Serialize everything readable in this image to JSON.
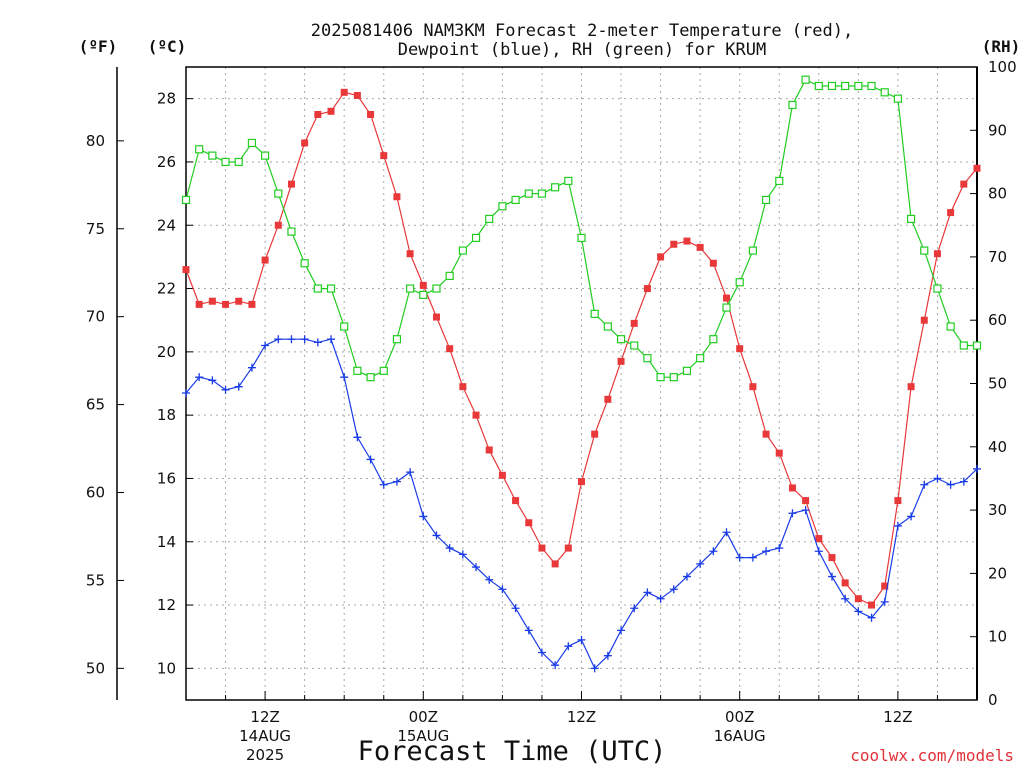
{
  "chart_data": {
    "type": "line",
    "title_line1": "2025081406 NAM3KM Forecast 2-meter Temperature (red),",
    "title_line2": "Dewpoint (blue), RH (green) for KRUM",
    "xlabel": "Forecast Time (UTC)",
    "credit": "coolwx.com/models",
    "units": {
      "fahrenheit": "(ºF)",
      "celsius": "(ºC)",
      "rh": "(RH)"
    },
    "x_range_hours": [
      6,
      66
    ],
    "x_ticks": [
      {
        "hour": 12,
        "l1": "12Z",
        "l2": "14AUG",
        "l3": "2025"
      },
      {
        "hour": 24,
        "l1": "00Z",
        "l2": "15AUG",
        "l3": ""
      },
      {
        "hour": 36,
        "l1": "12Z",
        "l2": "",
        "l3": ""
      },
      {
        "hour": 48,
        "l1": "00Z",
        "l2": "16AUG",
        "l3": ""
      },
      {
        "hour": 60,
        "l1": "12Z",
        "l2": "",
        "l3": ""
      }
    ],
    "y_celsius": {
      "range": [
        9,
        29
      ],
      "ticks": [
        10,
        12,
        14,
        16,
        18,
        20,
        22,
        24,
        26,
        28
      ]
    },
    "y_fahrenheit": {
      "ticks": [
        50,
        55,
        60,
        65,
        70,
        75,
        80
      ]
    },
    "y_rh": {
      "range": [
        0,
        100
      ],
      "ticks": [
        0,
        10,
        20,
        30,
        40,
        50,
        60,
        70,
        80,
        90,
        100
      ]
    },
    "grid": true,
    "series": [
      {
        "name": "Temperature",
        "color": "#e8383a",
        "axis": "celsius",
        "marker": "filled-square",
        "x": [
          6,
          7,
          8,
          9,
          10,
          11,
          12,
          13,
          14,
          15,
          16,
          17,
          18,
          19,
          20,
          21,
          22,
          23,
          24,
          25,
          26,
          27,
          28,
          29,
          30,
          31,
          32,
          33,
          34,
          35,
          36,
          37,
          38,
          39,
          40,
          41,
          42,
          43,
          44,
          45,
          46,
          47,
          48,
          49,
          50,
          51,
          52,
          53,
          54,
          55,
          56,
          57,
          58,
          59,
          60,
          61,
          62,
          63,
          64,
          65,
          66
        ],
        "values": [
          22.6,
          21.5,
          21.6,
          21.5,
          21.6,
          21.5,
          22.9,
          24.0,
          25.3,
          26.6,
          27.5,
          27.6,
          28.2,
          28.1,
          27.5,
          26.2,
          24.9,
          23.1,
          22.1,
          21.1,
          20.1,
          18.9,
          18.0,
          16.9,
          16.1,
          15.3,
          14.6,
          13.8,
          13.3,
          13.8,
          15.9,
          17.4,
          18.5,
          19.7,
          20.9,
          22.0,
          23.0,
          23.4,
          23.5,
          23.3,
          22.8,
          21.7,
          20.1,
          18.9,
          17.4,
          16.8,
          15.7,
          15.3,
          14.1,
          13.5,
          12.7,
          12.2,
          12.0,
          12.6,
          15.3,
          18.9,
          21.0,
          23.1,
          24.4,
          25.3,
          25.8
        ]
      },
      {
        "name": "Dewpoint",
        "color": "#1a3ce8",
        "axis": "celsius",
        "marker": "plus",
        "x": [
          6,
          7,
          8,
          9,
          10,
          11,
          12,
          13,
          14,
          15,
          16,
          17,
          18,
          19,
          20,
          21,
          22,
          23,
          24,
          25,
          26,
          27,
          28,
          29,
          30,
          31,
          32,
          33,
          34,
          35,
          36,
          37,
          38,
          39,
          40,
          41,
          42,
          43,
          44,
          45,
          46,
          47,
          48,
          49,
          50,
          51,
          52,
          53,
          54,
          55,
          56,
          57,
          58,
          59,
          60,
          61,
          62,
          63,
          64,
          65,
          66
        ],
        "values": [
          18.7,
          19.2,
          19.1,
          18.8,
          18.9,
          19.5,
          20.2,
          20.4,
          20.4,
          20.4,
          20.3,
          20.4,
          19.2,
          17.3,
          16.6,
          15.8,
          15.9,
          16.2,
          14.8,
          14.2,
          13.8,
          13.6,
          13.2,
          12.8,
          12.5,
          11.9,
          11.2,
          10.5,
          10.1,
          10.7,
          10.9,
          10.0,
          10.4,
          11.2,
          11.9,
          12.4,
          12.2,
          12.5,
          12.9,
          13.3,
          13.7,
          14.3,
          13.5,
          13.5,
          13.7,
          13.8,
          14.9,
          15.0,
          13.7,
          12.9,
          12.2,
          11.8,
          11.6,
          12.1,
          14.5,
          14.8,
          15.8,
          16.0,
          15.8,
          15.9,
          16.3
        ]
      },
      {
        "name": "RH",
        "color": "#22cc22",
        "axis": "rh",
        "marker": "open-square",
        "x": [
          6,
          7,
          8,
          9,
          10,
          11,
          12,
          13,
          14,
          15,
          16,
          17,
          18,
          19,
          20,
          21,
          22,
          23,
          24,
          25,
          26,
          27,
          28,
          29,
          30,
          31,
          32,
          33,
          34,
          35,
          36,
          37,
          38,
          39,
          40,
          41,
          42,
          43,
          44,
          45,
          46,
          47,
          48,
          49,
          50,
          51,
          52,
          53,
          54,
          55,
          56,
          57,
          58,
          59,
          60,
          61,
          62,
          63,
          64,
          65,
          66
        ],
        "values": [
          79,
          87,
          86,
          85,
          85,
          88,
          86,
          80,
          74,
          69,
          65,
          65,
          59,
          52,
          51,
          52,
          57,
          65,
          64,
          65,
          67,
          71,
          73,
          76,
          78,
          79,
          80,
          80,
          81,
          82,
          73,
          61,
          59,
          57,
          56,
          54,
          51,
          51,
          52,
          54,
          57,
          62,
          66,
          71,
          79,
          82,
          94,
          98,
          97,
          97,
          97,
          97,
          97,
          96,
          95,
          76,
          71,
          65,
          59,
          56,
          56
        ]
      }
    ]
  }
}
